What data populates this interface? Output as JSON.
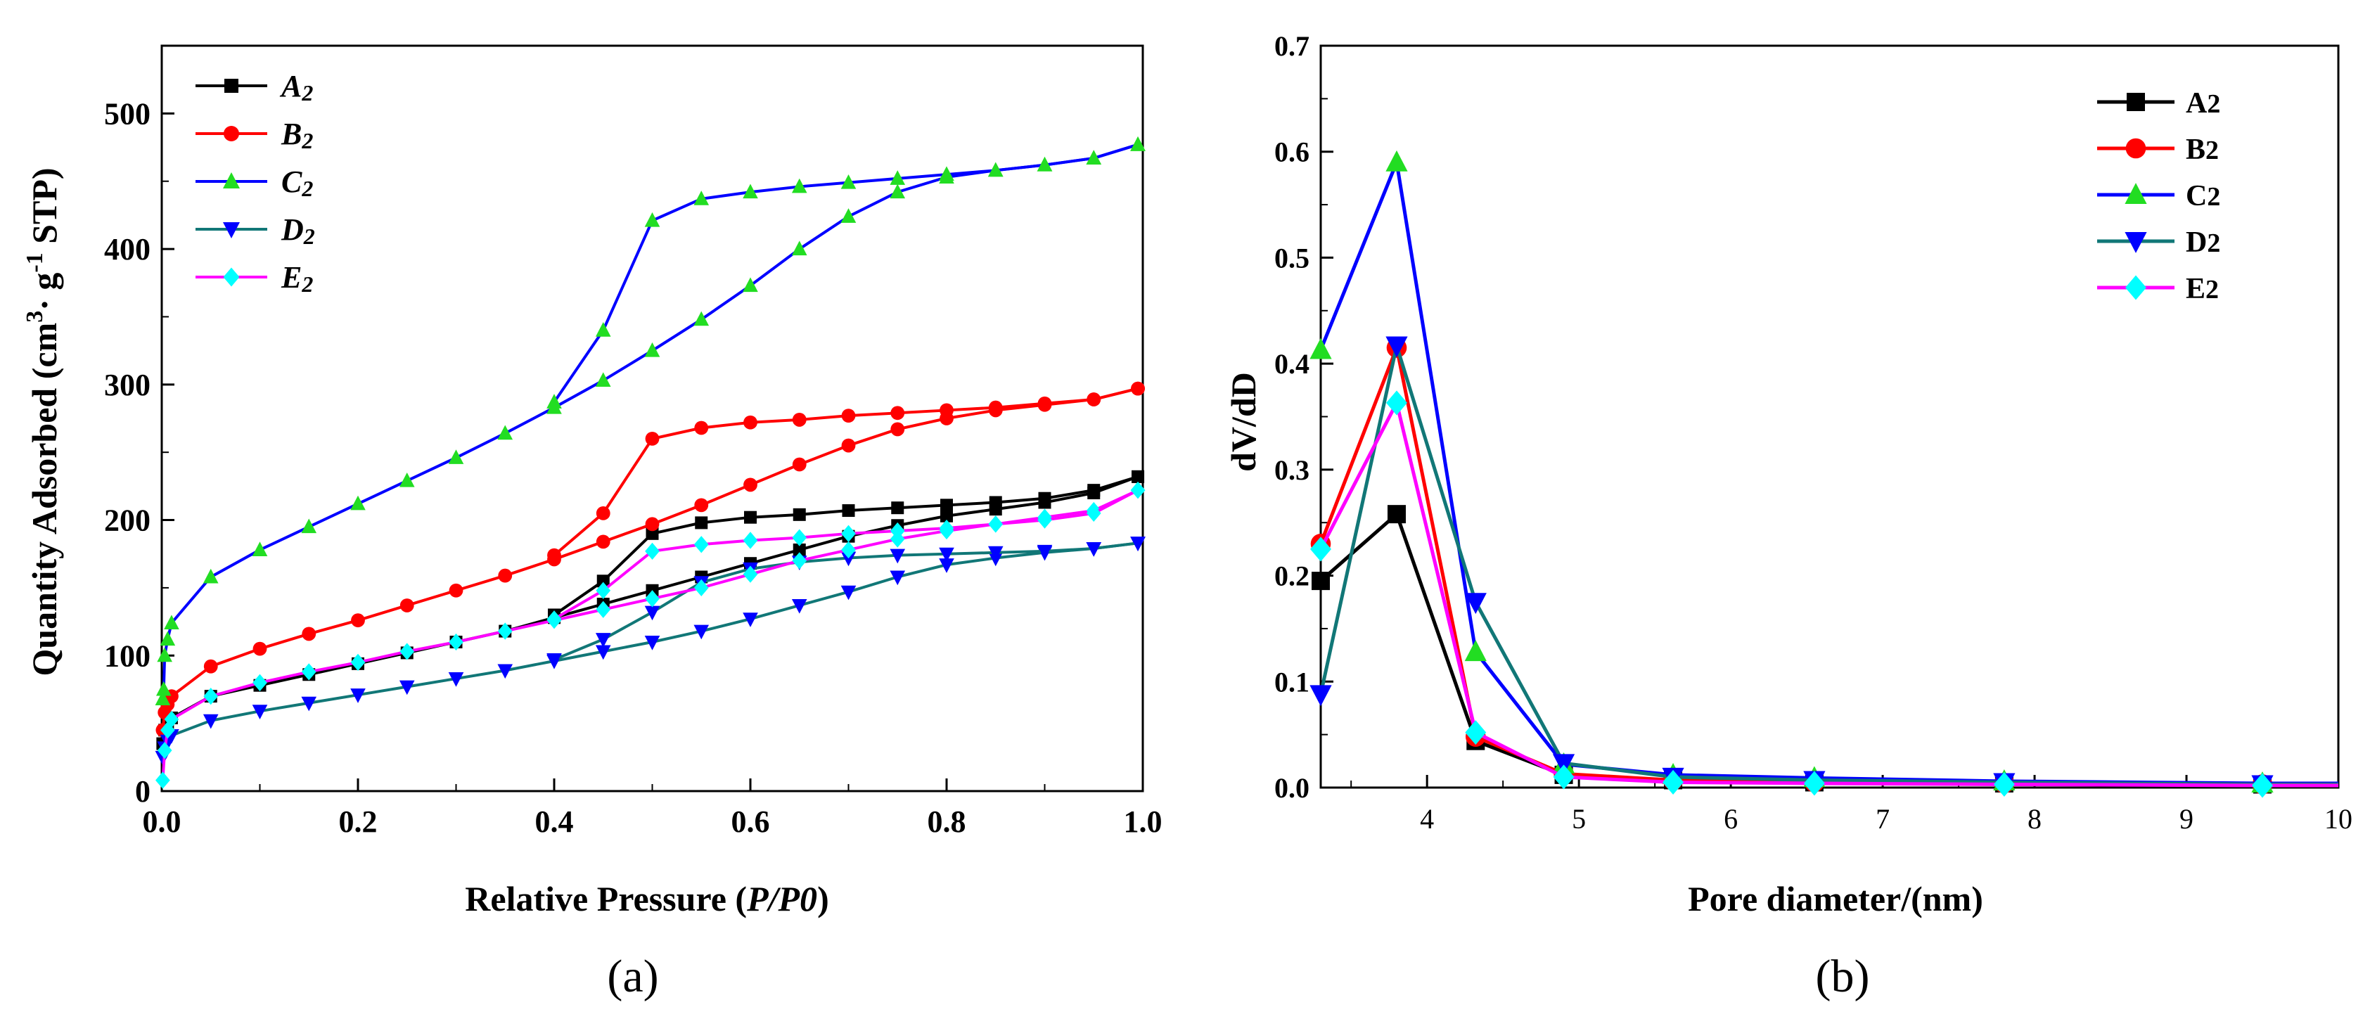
{
  "chart_data": [
    {
      "type": "line",
      "panel_label": "(a)",
      "title": "",
      "xlabel_main": "Relative Pressure (",
      "xlabel_italic": "P/P0",
      "xlabel_close": ")",
      "ylabel": "Quantity Adsorbed (cm",
      "ylabel_sup1": "3",
      "ylabel_mid": "· g",
      "ylabel_sup2": "-1",
      "ylabel_end": " STP)",
      "xlim": [
        0,
        1.0
      ],
      "ylim": [
        0,
        550
      ],
      "xticks": [
        0.0,
        0.2,
        0.4,
        0.6,
        0.8,
        1.0
      ],
      "xtick_labels": [
        "0.0",
        "0.2",
        "0.4",
        "0.6",
        "0.8",
        "1.0"
      ],
      "yticks": [
        0,
        100,
        200,
        300,
        400,
        500
      ],
      "ytick_labels": [
        "0",
        "100",
        "200",
        "300",
        "400",
        "500"
      ],
      "legend_position": "top-left",
      "series": [
        {
          "name": "A2",
          "label_main": "A",
          "label_sub": "2",
          "color": "#000000",
          "marker": "square",
          "adsorption": {
            "x": [
              0.001,
              0.003,
              0.006,
              0.01,
              0.05,
              0.1,
              0.15,
              0.2,
              0.25,
              0.3,
              0.35,
              0.4,
              0.45,
              0.5,
              0.55,
              0.6,
              0.65,
              0.7,
              0.75,
              0.8,
              0.85,
              0.9,
              0.95,
              0.995
            ],
            "y": [
              35,
              45,
              50,
              54,
              70,
              78,
              86,
              94,
              102,
              110,
              118,
              128,
              138,
              148,
              158,
              168,
              178,
              188,
              196,
              203,
              208,
              213,
              220,
              232
            ]
          },
          "desorption": {
            "x": [
              0.995,
              0.95,
              0.9,
              0.85,
              0.8,
              0.75,
              0.7,
              0.65,
              0.6,
              0.55,
              0.5,
              0.45,
              0.4
            ],
            "y": [
              232,
              222,
              216,
              213,
              211,
              209,
              207,
              204,
              202,
              198,
              190,
              155,
              130
            ]
          }
        },
        {
          "name": "B2",
          "label_main": "B",
          "label_sub": "2",
          "color": "#ff0000",
          "marker": "circle",
          "adsorption": {
            "x": [
              0.001,
              0.003,
              0.006,
              0.01,
              0.05,
              0.1,
              0.15,
              0.2,
              0.25,
              0.3,
              0.35,
              0.4,
              0.45,
              0.5,
              0.55,
              0.6,
              0.65,
              0.7,
              0.75,
              0.8,
              0.85,
              0.9,
              0.95,
              0.995
            ],
            "y": [
              45,
              58,
              64,
              70,
              92,
              105,
              116,
              126,
              137,
              148,
              159,
              171,
              184,
              197,
              211,
              226,
              241,
              255,
              267,
              275,
              281,
              285,
              289,
              297
            ]
          },
          "desorption": {
            "x": [
              0.995,
              0.95,
              0.9,
              0.85,
              0.8,
              0.75,
              0.7,
              0.65,
              0.6,
              0.55,
              0.5,
              0.45,
              0.4
            ],
            "y": [
              297,
              289,
              286,
              283,
              281,
              279,
              277,
              274,
              272,
              268,
              260,
              205,
              174
            ]
          }
        },
        {
          "name": "C2",
          "label_main": "C",
          "label_sub": "2",
          "color": "#0000ff",
          "marker_color": "#22dd22",
          "marker": "triangle-up",
          "adsorption": {
            "x": [
              0.001,
              0.002,
              0.003,
              0.006,
              0.01,
              0.05,
              0.1,
              0.15,
              0.2,
              0.25,
              0.3,
              0.35,
              0.4,
              0.45,
              0.5,
              0.55,
              0.6,
              0.65,
              0.7,
              0.75,
              0.8,
              0.85,
              0.9,
              0.95,
              0.995
            ],
            "y": [
              68,
              75,
              100,
              112,
              124,
              158,
              178,
              195,
              212,
              229,
              246,
              264,
              283,
              303,
              325,
              348,
              373,
              400,
              424,
              442,
              453,
              458,
              462,
              467,
              477
            ]
          },
          "desorption": {
            "x": [
              0.995,
              0.95,
              0.9,
              0.85,
              0.8,
              0.75,
              0.7,
              0.65,
              0.6,
              0.55,
              0.5,
              0.45,
              0.4
            ],
            "y": [
              477,
              467,
              462,
              458,
              455,
              452,
              449,
              446,
              442,
              437,
              421,
              340,
              287
            ]
          }
        },
        {
          "name": "D2",
          "label_main": "D",
          "label_sub": "2",
          "color": "#0000ff",
          "line_color": "#117777",
          "marker": "triangle-down",
          "adsorption": {
            "x": [
              0.001,
              0.003,
              0.006,
              0.01,
              0.05,
              0.1,
              0.15,
              0.2,
              0.25,
              0.3,
              0.35,
              0.4,
              0.45,
              0.5,
              0.55,
              0.6,
              0.65,
              0.7,
              0.75,
              0.8,
              0.85,
              0.9,
              0.95,
              0.995
            ],
            "y": [
              25,
              32,
              37,
              41,
              52,
              59,
              65,
              71,
              77,
              83,
              89,
              96,
              103,
              110,
              118,
              127,
              137,
              147,
              158,
              167,
              172,
              176,
              179,
              183
            ]
          },
          "desorption": {
            "x": [
              0.995,
              0.95,
              0.9,
              0.85,
              0.8,
              0.75,
              0.7,
              0.65,
              0.6,
              0.55,
              0.5,
              0.45,
              0.4
            ],
            "y": [
              183,
              179,
              177,
              176,
              175,
              174,
              172,
              169,
              164,
              154,
              132,
              112,
              97
            ]
          }
        },
        {
          "name": "E2",
          "label_main": "E",
          "label_sub": "2",
          "color": "#00ffff",
          "line_color": "#ff00ff",
          "marker": "diamond",
          "adsorption": {
            "x": [
              0.001,
              0.003,
              0.006,
              0.01,
              0.05,
              0.1,
              0.15,
              0.2,
              0.25,
              0.3,
              0.35,
              0.4,
              0.45,
              0.5,
              0.55,
              0.6,
              0.65,
              0.7,
              0.75,
              0.8,
              0.85,
              0.9,
              0.95,
              0.995
            ],
            "y": [
              8,
              30,
              45,
              53,
              70,
              80,
              88,
              95,
              103,
              110,
              118,
              126,
              134,
              142,
              150,
              160,
              170,
              178,
              186,
              192,
              197,
              202,
              207,
              222
            ]
          },
          "desorption": {
            "x": [
              0.995,
              0.95,
              0.9,
              0.85,
              0.8,
              0.75,
              0.7,
              0.65,
              0.6,
              0.55,
              0.5,
              0.45,
              0.4
            ],
            "y": [
              222,
              205,
              200,
              197,
              194,
              192,
              190,
              187,
              185,
              182,
              177,
              148,
              127
            ]
          }
        }
      ]
    },
    {
      "type": "line",
      "panel_label": "(b)",
      "title": "",
      "xlabel": "Pore diameter/(nm)",
      "ylabel": "dV/dD",
      "xlim": [
        3.3,
        10
      ],
      "ylim": [
        0,
        0.7
      ],
      "xticks": [
        4,
        5,
        6,
        7,
        8,
        9,
        10
      ],
      "xtick_labels": [
        "4",
        "5",
        "6",
        "7",
        "8",
        "9",
        "10"
      ],
      "yticks": [
        0.0,
        0.1,
        0.2,
        0.3,
        0.4,
        0.5,
        0.6,
        0.7
      ],
      "ytick_labels": [
        "0.0",
        "0.1",
        "0.2",
        "0.3",
        "0.4",
        "0.5",
        "0.6",
        "0.7"
      ],
      "legend_position": "top-right",
      "x": [
        3.3,
        3.8,
        4.32,
        4.9,
        5.62,
        6.55,
        7.8,
        9.5,
        10
      ],
      "series": [
        {
          "name": "A2",
          "label_main": "A",
          "label_sub": "2",
          "color": "#000000",
          "marker": "square",
          "values": [
            0.195,
            0.258,
            0.044,
            0.012,
            0.007,
            0.005,
            0.004,
            0.003,
            0.003
          ]
        },
        {
          "name": "B2",
          "label_main": "B",
          "label_sub": "2",
          "color": "#ff0000",
          "marker": "circle",
          "values": [
            0.23,
            0.415,
            0.048,
            0.013,
            0.007,
            0.005,
            0.004,
            0.003,
            0.003
          ]
        },
        {
          "name": "C2",
          "label_main": "C",
          "label_sub": "2",
          "color": "#0000ff",
          "marker_color": "#22dd22",
          "marker": "triangle-up",
          "values": [
            0.413,
            0.59,
            0.128,
            0.022,
            0.012,
            0.009,
            0.006,
            0.004,
            0.004
          ]
        },
        {
          "name": "D2",
          "label_main": "D",
          "label_sub": "2",
          "color": "#0000ff",
          "line_color": "#117777",
          "marker": "triangle-down",
          "values": [
            0.088,
            0.417,
            0.175,
            0.023,
            0.01,
            0.007,
            0.005,
            0.003,
            0.003
          ]
        },
        {
          "name": "E2",
          "label_main": "E",
          "label_sub": "2",
          "color": "#00ffff",
          "line_color": "#ff00ff",
          "marker": "diamond",
          "values": [
            0.225,
            0.363,
            0.052,
            0.01,
            0.005,
            0.004,
            0.003,
            0.002,
            0.002
          ]
        }
      ]
    }
  ]
}
